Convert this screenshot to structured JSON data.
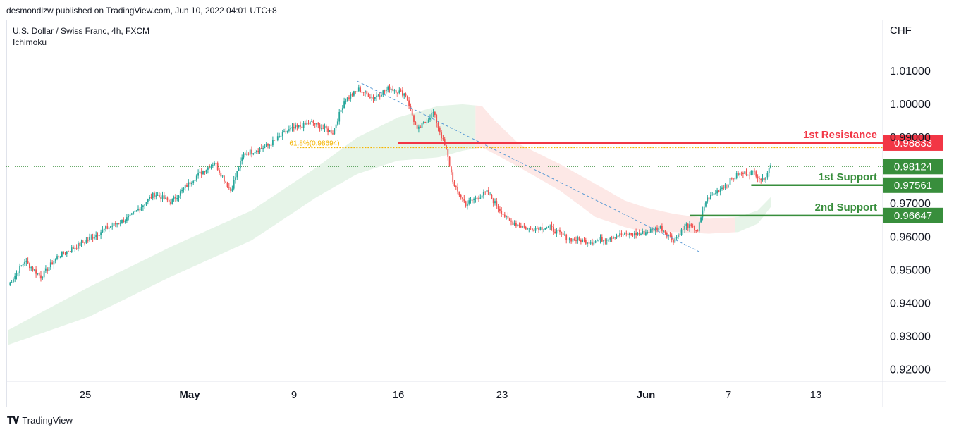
{
  "header": {
    "attribution": "desmondlzw published on TradingView.com, Jun 10, 2022 04:01 UTC+8",
    "instrument": "U.S. Dollar / Swiss Franc, 4h, FXCM",
    "indicator": "Ichimoku"
  },
  "footer": {
    "brand": "TradingView",
    "logo_icon": "tradingview-logo-icon"
  },
  "colors": {
    "up": "#26a69a",
    "down": "#ef5350",
    "resistance": "#f23645",
    "support": "#388e3c",
    "cloud_bull": "#e6f4e8",
    "cloud_bear": "#fde8e6",
    "fib": "#f5b400",
    "trend": "#5b9bd5",
    "last_price": "#388e3c"
  },
  "chart_data": {
    "type": "candlestick",
    "y_axis_unit": "CHF",
    "ylim": [
      0.9165,
      1.0255
    ],
    "y_ticks": [
      "1.01000",
      "1.00000",
      "0.99000",
      "0.97000",
      "0.96000",
      "0.95000",
      "0.94000",
      "0.93000",
      "0.92000"
    ],
    "y_tick_values": [
      1.01,
      1.0,
      0.99,
      0.97,
      0.96,
      0.95,
      0.94,
      0.93,
      0.92
    ],
    "x_labels": [
      {
        "label": "25",
        "bold": false
      },
      {
        "label": "May",
        "bold": true
      },
      {
        "label": "9",
        "bold": false
      },
      {
        "label": "16",
        "bold": false
      },
      {
        "label": "23",
        "bold": false
      },
      {
        "label": "Jun",
        "bold": true
      },
      {
        "label": "7",
        "bold": false
      },
      {
        "label": "13",
        "bold": false
      }
    ],
    "price_anchors": [
      [
        0,
        0.9455
      ],
      [
        10,
        0.9528
      ],
      [
        20,
        0.948
      ],
      [
        30,
        0.954
      ],
      [
        45,
        0.958
      ],
      [
        60,
        0.9625
      ],
      [
        75,
        0.966
      ],
      [
        90,
        0.973
      ],
      [
        100,
        0.9705
      ],
      [
        115,
        0.978
      ],
      [
        127,
        0.9825
      ],
      [
        137,
        0.974
      ],
      [
        145,
        0.985
      ],
      [
        160,
        0.9875
      ],
      [
        172,
        0.992
      ],
      [
        187,
        0.9945
      ],
      [
        200,
        0.9915
      ],
      [
        207,
        1.001
      ],
      [
        216,
        1.0045
      ],
      [
        225,
        1.002
      ],
      [
        235,
        1.005
      ],
      [
        245,
        1.003
      ],
      [
        252,
        0.992
      ],
      [
        262,
        0.9975
      ],
      [
        270,
        0.986
      ],
      [
        275,
        0.975
      ],
      [
        282,
        0.97
      ],
      [
        295,
        0.9735
      ],
      [
        308,
        0.965
      ],
      [
        320,
        0.9625
      ],
      [
        333,
        0.963
      ],
      [
        345,
        0.9595
      ],
      [
        360,
        0.9585
      ],
      [
        375,
        0.9605
      ],
      [
        390,
        0.961
      ],
      [
        402,
        0.963
      ],
      [
        410,
        0.959
      ],
      [
        418,
        0.9635
      ],
      [
        425,
        0.962
      ],
      [
        430,
        0.971
      ],
      [
        440,
        0.975
      ],
      [
        450,
        0.979
      ],
      [
        460,
        0.9795
      ],
      [
        465,
        0.977
      ],
      [
        470,
        0.9815
      ]
    ],
    "cloud_upper": [
      [
        0,
        0.932
      ],
      [
        50,
        0.945
      ],
      [
        100,
        0.957
      ],
      [
        150,
        0.968
      ],
      [
        190,
        0.981
      ],
      [
        215,
        0.99
      ],
      [
        240,
        0.996
      ],
      [
        265,
        0.9995
      ],
      [
        280,
        1.0
      ],
      [
        292,
        0.9995
      ],
      [
        300,
        0.995
      ],
      [
        315,
        0.988
      ],
      [
        340,
        0.982
      ],
      [
        362,
        0.976
      ],
      [
        380,
        0.971
      ],
      [
        392,
        0.969
      ],
      [
        410,
        0.967
      ],
      [
        432,
        0.9655
      ],
      [
        450,
        0.966
      ],
      [
        462,
        0.968
      ],
      [
        470,
        0.972
      ]
    ],
    "cloud_lower": [
      [
        0,
        0.9275
      ],
      [
        50,
        0.936
      ],
      [
        100,
        0.948
      ],
      [
        150,
        0.959
      ],
      [
        190,
        0.972
      ],
      [
        215,
        0.979
      ],
      [
        240,
        0.983
      ],
      [
        265,
        0.984
      ],
      [
        280,
        0.986
      ],
      [
        292,
        0.987
      ],
      [
        300,
        0.985
      ],
      [
        315,
        0.981
      ],
      [
        340,
        0.974
      ],
      [
        362,
        0.966
      ],
      [
        380,
        0.963
      ],
      [
        392,
        0.9615
      ],
      [
        410,
        0.9615
      ],
      [
        432,
        0.961
      ],
      [
        450,
        0.9615
      ],
      [
        462,
        0.964
      ],
      [
        470,
        0.969
      ]
    ],
    "cloud_bear_range": [
      288,
      448
    ],
    "last_price": 0.98124,
    "levels": [
      {
        "name": "1st Resistance",
        "price": "0.98833",
        "value": 0.98833,
        "kind": "resistance",
        "start": 240
      },
      {
        "name": "1st Support",
        "price": "0.97561",
        "value": 0.97561,
        "kind": "support",
        "start": 458
      },
      {
        "name": "2nd Support",
        "price": "0.96647",
        "value": 0.96647,
        "kind": "support",
        "start": 420
      }
    ],
    "last_price_label": "0.98124",
    "fibonacci": {
      "label": "61.8%(0.98694)",
      "value": 0.98694,
      "start": 178
    },
    "trendline": {
      "start": [
        215,
        1.007
      ],
      "end": [
        427,
        0.9553
      ]
    },
    "bars": 470
  }
}
